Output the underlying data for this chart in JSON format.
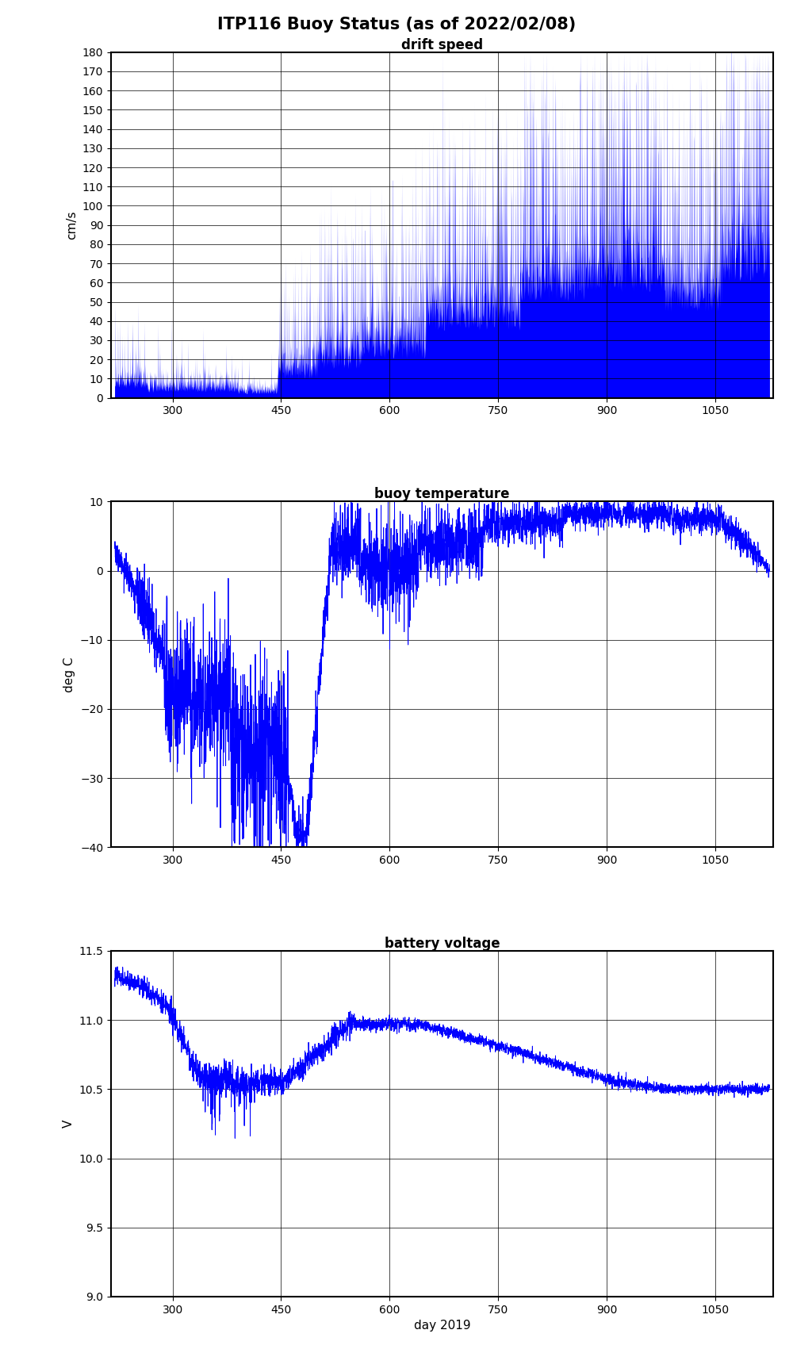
{
  "title": "ITP116 Buoy Status (as of 2022/02/08)",
  "xlabel": "day 2019",
  "xlim": [
    215,
    1130
  ],
  "xticks": [
    300,
    450,
    600,
    750,
    900,
    1050
  ],
  "drift_speed": {
    "title": "drift speed",
    "ylabel": "cm/s",
    "ylim": [
      0,
      180
    ],
    "yticks": [
      0,
      10,
      20,
      30,
      40,
      50,
      60,
      70,
      80,
      90,
      100,
      110,
      120,
      130,
      140,
      150,
      160,
      170,
      180
    ]
  },
  "buoy_temp": {
    "title": "buoy temperature",
    "ylabel": "deg C",
    "ylim": [
      -40,
      10
    ],
    "yticks": [
      -40,
      -30,
      -20,
      -10,
      0,
      10
    ]
  },
  "battery_voltage": {
    "title": "battery voltage",
    "ylabel": "V",
    "ylim": [
      9.0,
      11.5
    ],
    "yticks": [
      9.0,
      9.5,
      10.0,
      10.5,
      11.0,
      11.5
    ]
  },
  "line_color": "#0000FF",
  "line_width": 0.7,
  "bg_color": "#FFFFFF",
  "title_fontsize": 15,
  "subplot_title_fontsize": 12,
  "axis_label_fontsize": 11,
  "tick_fontsize": 10
}
